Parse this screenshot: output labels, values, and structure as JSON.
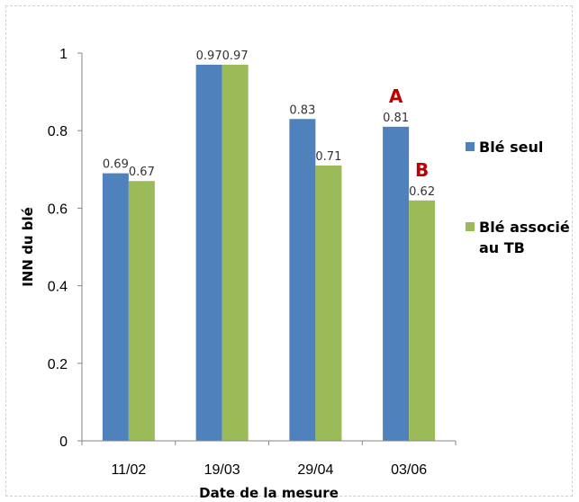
{
  "chart_data": {
    "type": "bar",
    "title": "",
    "xlabel": "Date de la mesure",
    "ylabel": "INN du blé",
    "categories": [
      "11/02",
      "19/03",
      "29/04",
      "03/06"
    ],
    "ylim": [
      0,
      1
    ],
    "yticks": [
      "0",
      "0.2",
      "0.4",
      "0.6",
      "0.8",
      "1"
    ],
    "grid": false,
    "legend_position": "right",
    "series": [
      {
        "name": "Blé seul",
        "color": "#4f81bd",
        "values": [
          0.69,
          0.97,
          0.83,
          0.81
        ],
        "labels": [
          "0.69",
          "0.97",
          "0.83",
          "0.81"
        ]
      },
      {
        "name": "Blé associé au TB",
        "legend_lines": [
          "Blé associé",
          "au TB"
        ],
        "color": "#9bbb59",
        "values": [
          0.67,
          0.97,
          0.71,
          0.62
        ],
        "labels": [
          "0.67",
          "0.97",
          "0.71",
          "0.62"
        ]
      }
    ],
    "annotations": [
      {
        "text": "A",
        "category": "03/06",
        "series": 0,
        "color": "#c00000"
      },
      {
        "text": "B",
        "category": "03/06",
        "series": 1,
        "color": "#c00000"
      }
    ]
  }
}
